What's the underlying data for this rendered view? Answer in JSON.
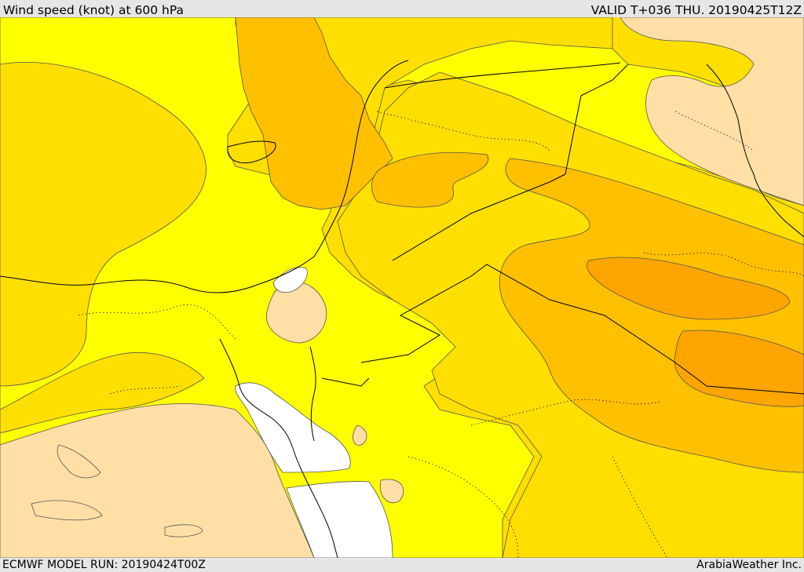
{
  "map": {
    "title": "Wind speed (knot) at 600 hPa",
    "valid_time": "VALID T+036 THU. 20190425T12Z",
    "model_run": "ECMWF MODEL RUN: 20190424T00Z",
    "credit": "ArabiaWeather Inc."
  },
  "colors": {
    "band_calm": "#ffffff",
    "band_light": "#ffdfa6",
    "band_1": "#ffff00",
    "band_2": "#ffdf00",
    "band_3": "#ffc000",
    "band_4": "#ffa500",
    "contour": "#555555",
    "border": "#000000"
  }
}
